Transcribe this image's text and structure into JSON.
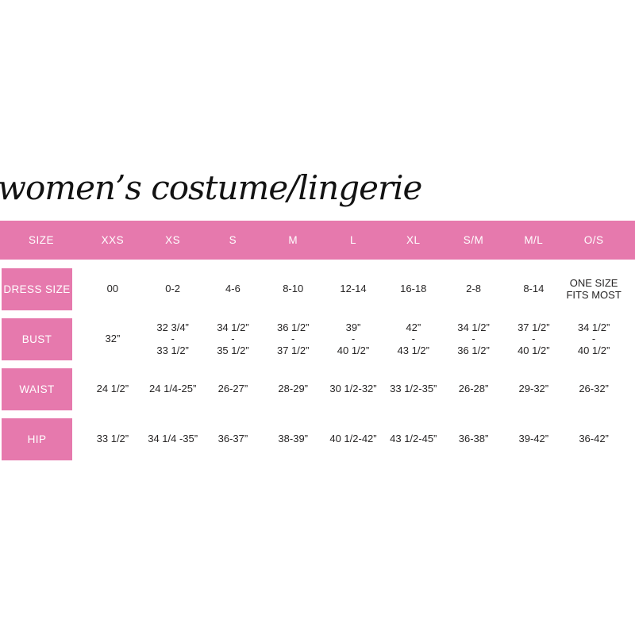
{
  "title": "women’s costume/lingerie",
  "colors": {
    "accent_pink": "#e679ad",
    "header_text": "#ffffff",
    "cell_text": "#272525",
    "background": "#ffffff"
  },
  "chart_data": {
    "type": "table",
    "title": "women’s costume/lingerie",
    "columns": [
      "SIZE",
      "XXS",
      "XS",
      "S",
      "M",
      "L",
      "XL",
      "S/M",
      "M/L",
      "O/S"
    ],
    "rows": [
      {
        "label": "DRESS SIZE",
        "cells": [
          "00",
          "0-2",
          "4-6",
          "8-10",
          "12-14",
          "16-18",
          "2-8",
          "8-14",
          "ONE SIZE\nFITS MOST"
        ]
      },
      {
        "label": "BUST",
        "cells": [
          "32”",
          "32 3/4”\n-\n33 1/2”",
          "34 1/2”\n-\n35 1/2”",
          "36 1/2”\n-\n37 1/2”",
          "39”\n-\n40 1/2”",
          "42”\n-\n43 1/2”",
          "34 1/2”\n-\n36 1/2”",
          "37 1/2”\n-\n40 1/2”",
          "34 1/2”\n-\n40 1/2”"
        ]
      },
      {
        "label": "WAIST",
        "cells": [
          "24 1/2”",
          "24 1/4-25”",
          "26-27”",
          "28-29”",
          "30 1/2-32”",
          "33 1/2-35”",
          "26-28”",
          "29-32”",
          "26-32”"
        ]
      },
      {
        "label": "HIP",
        "cells": [
          "33 1/2”",
          "34 1/4 -35”",
          "36-37”",
          "38-39”",
          "40 1/2-42”",
          "43 1/2-45”",
          "36-38”",
          "39-42”",
          "36-42”"
        ]
      }
    ]
  }
}
